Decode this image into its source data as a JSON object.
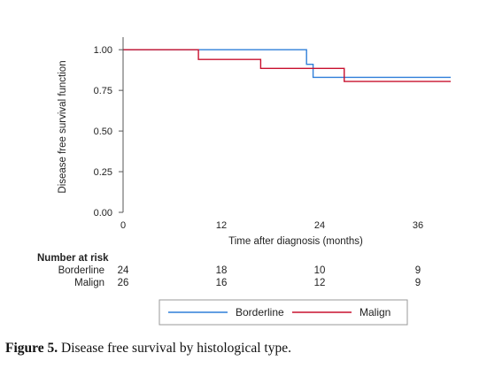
{
  "chart_data": {
    "type": "line",
    "ylabel": "Disease free survival function",
    "xlabel": "Time after diagnosis (months)",
    "xlim": [
      0,
      40
    ],
    "ylim": [
      0,
      1.05
    ],
    "x_ticks": [
      0,
      12,
      24,
      36
    ],
    "x_tick_labels": [
      "0",
      "12",
      "24",
      "36"
    ],
    "y_ticks": [
      0,
      0.25,
      0.5,
      0.75,
      1.0
    ],
    "y_tick_labels": [
      "0.00",
      "0.25",
      "0.50",
      "0.75",
      "1.00"
    ],
    "grid": false,
    "legend_position": "bottom",
    "series": [
      {
        "name": "Borderline",
        "color": "#2f7fd9",
        "steps": [
          {
            "x": 0,
            "y": 1.0
          },
          {
            "x": 22.4,
            "y": 0.91
          },
          {
            "x": 23.2,
            "y": 0.83
          },
          {
            "x": 40,
            "y": 0.83
          }
        ]
      },
      {
        "name": "Malign",
        "color": "#c8102e",
        "steps": [
          {
            "x": 0,
            "y": 1.0
          },
          {
            "x": 9.2,
            "y": 0.94
          },
          {
            "x": 16.8,
            "y": 0.885
          },
          {
            "x": 27,
            "y": 0.805
          },
          {
            "x": 40,
            "y": 0.805
          }
        ]
      }
    ],
    "risk_table": {
      "title": "Number at risk",
      "rows": [
        {
          "label": "Borderline",
          "values": [
            "24",
            "18",
            "10",
            "9"
          ]
        },
        {
          "label": "Malign",
          "values": [
            "26",
            "16",
            "12",
            "9"
          ]
        }
      ]
    }
  },
  "caption": {
    "prefix": "Figure 5.",
    "text": " Disease free survival by histological type."
  }
}
